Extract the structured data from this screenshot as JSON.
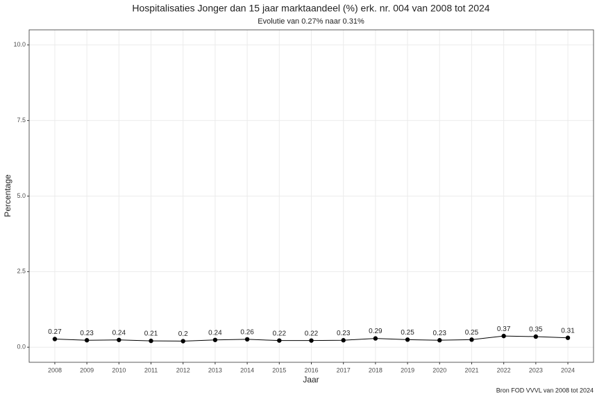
{
  "chart_data": {
    "type": "line",
    "title": "Hospitalisaties Jonger dan 15 jaar marktaandeel (%) erk. nr. 004 van 2008 tot 2024",
    "subtitle": "Evolutie van 0.27% naar 0.31%",
    "x_label": "Jaar",
    "y_label": "Percentage",
    "caption": "Bron FOD VVVL van 2008 tot 2024",
    "x": [
      2008,
      2009,
      2010,
      2011,
      2012,
      2013,
      2014,
      2015,
      2016,
      2017,
      2018,
      2019,
      2020,
      2021,
      2022,
      2023,
      2024
    ],
    "values": [
      0.27,
      0.23,
      0.24,
      0.21,
      0.2,
      0.24,
      0.26,
      0.22,
      0.22,
      0.23,
      0.29,
      0.25,
      0.23,
      0.25,
      0.37,
      0.35,
      0.31
    ],
    "color": "#000000",
    "xlim": [
      2007.2,
      2024.8
    ],
    "xticks": [
      2008,
      2009,
      2010,
      2011,
      2012,
      2013,
      2014,
      2015,
      2016,
      2017,
      2018,
      2019,
      2020,
      2021,
      2022,
      2023,
      2024
    ],
    "ylim": [
      -0.5,
      10.5
    ],
    "yticks": [
      {
        "value": 0,
        "label": "0.0"
      },
      2.5,
      {
        "value": 5,
        "label": "5.0"
      },
      7.5,
      {
        "value": 10,
        "label": "10.0"
      }
    ],
    "grid": true
  }
}
